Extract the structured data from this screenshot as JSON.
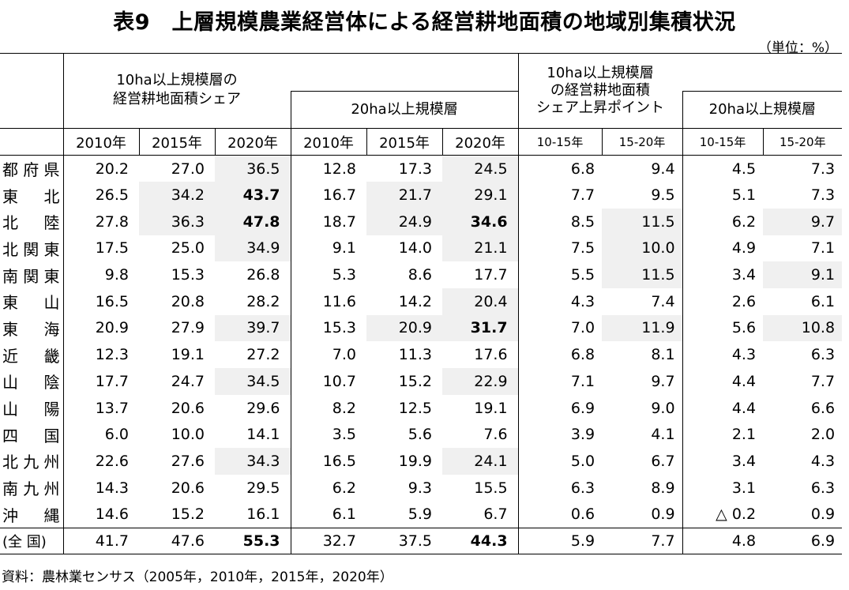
{
  "title": "表9　上層規模農業経営体による経営耕地面積の地域別集積状況",
  "unit": "（単位：%）",
  "headers": {
    "group1": "10ha以上規模層の\n経営耕地面積シェア",
    "group2": "20ha以上規模層",
    "group3": "10ha以上規模層\nの経営耕地面積\nシェア上昇ポイント",
    "group4": "20ha以上規模層"
  },
  "years": [
    "2010年",
    "2015年",
    "2020年",
    "2010年",
    "2015年",
    "2020年",
    "10-15年",
    "15-20年",
    "10-15年",
    "15-20年"
  ],
  "rows": [
    {
      "label": "都府県",
      "values": [
        "20.2",
        "27.0",
        "36.5",
        "12.8",
        "17.3",
        "24.5",
        "6.8",
        "9.4",
        "4.5",
        "7.3"
      ],
      "shade": [
        2,
        5
      ],
      "bold": []
    },
    {
      "label": "東北",
      "values": [
        "26.5",
        "34.2",
        "43.7",
        "16.7",
        "21.7",
        "29.1",
        "7.7",
        "9.5",
        "5.1",
        "7.3"
      ],
      "shade": [
        1,
        2,
        4,
        5
      ],
      "bold": [
        2
      ]
    },
    {
      "label": "北陸",
      "values": [
        "27.8",
        "36.3",
        "47.8",
        "18.7",
        "24.9",
        "34.6",
        "8.5",
        "11.5",
        "6.2",
        "9.7"
      ],
      "shade": [
        1,
        2,
        4,
        5,
        7,
        9
      ],
      "bold": [
        2,
        5
      ]
    },
    {
      "label": "北関東",
      "values": [
        "17.5",
        "25.0",
        "34.9",
        "9.1",
        "14.0",
        "21.1",
        "7.5",
        "10.0",
        "4.9",
        "7.1"
      ],
      "shade": [
        2,
        5,
        7
      ],
      "bold": []
    },
    {
      "label": "南関東",
      "values": [
        "9.8",
        "15.3",
        "26.8",
        "5.3",
        "8.6",
        "17.7",
        "5.5",
        "11.5",
        "3.4",
        "9.1"
      ],
      "shade": [
        7,
        9
      ],
      "bold": []
    },
    {
      "label": "東山",
      "values": [
        "16.5",
        "20.8",
        "28.2",
        "11.6",
        "14.2",
        "20.4",
        "4.3",
        "7.4",
        "2.6",
        "6.1"
      ],
      "shade": [
        5
      ],
      "bold": []
    },
    {
      "label": "東海",
      "values": [
        "20.9",
        "27.9",
        "39.7",
        "15.3",
        "20.9",
        "31.7",
        "7.0",
        "11.9",
        "5.6",
        "10.8"
      ],
      "shade": [
        2,
        4,
        5,
        7,
        9
      ],
      "bold": [
        5
      ]
    },
    {
      "label": "近畿",
      "values": [
        "12.3",
        "19.1",
        "27.2",
        "7.0",
        "11.3",
        "17.6",
        "6.8",
        "8.1",
        "4.3",
        "6.3"
      ],
      "shade": [],
      "bold": []
    },
    {
      "label": "山陰",
      "values": [
        "17.7",
        "24.7",
        "34.5",
        "10.7",
        "15.2",
        "22.9",
        "7.1",
        "9.7",
        "4.4",
        "7.7"
      ],
      "shade": [
        2,
        5
      ],
      "bold": []
    },
    {
      "label": "山陽",
      "values": [
        "13.7",
        "20.6",
        "29.6",
        "8.2",
        "12.5",
        "19.1",
        "6.9",
        "9.0",
        "4.4",
        "6.6"
      ],
      "shade": [],
      "bold": []
    },
    {
      "label": "四国",
      "values": [
        "6.0",
        "10.0",
        "14.1",
        "3.5",
        "5.6",
        "7.6",
        "3.9",
        "4.1",
        "2.1",
        "2.0"
      ],
      "shade": [],
      "bold": []
    },
    {
      "label": "北九州",
      "values": [
        "22.6",
        "27.6",
        "34.3",
        "16.5",
        "19.9",
        "24.1",
        "5.0",
        "6.7",
        "3.4",
        "4.3"
      ],
      "shade": [
        2,
        5
      ],
      "bold": []
    },
    {
      "label": "南九州",
      "values": [
        "14.3",
        "20.6",
        "29.5",
        "6.2",
        "9.3",
        "15.5",
        "6.3",
        "8.9",
        "3.1",
        "6.3"
      ],
      "shade": [],
      "bold": []
    },
    {
      "label": "沖縄",
      "values": [
        "14.6",
        "15.2",
        "16.1",
        "6.1",
        "5.9",
        "6.7",
        "0.6",
        "0.9",
        "△ 0.2",
        "0.9"
      ],
      "shade": [],
      "bold": []
    }
  ],
  "total": {
    "label": "(全 国)",
    "values": [
      "41.7",
      "47.6",
      "55.3",
      "32.7",
      "37.5",
      "44.3",
      "5.9",
      "7.7",
      "4.8",
      "6.9"
    ],
    "bold": [
      2,
      5
    ]
  },
  "source": "資料：農林業センサス（2005年，2010年，2015年，2020年）"
}
